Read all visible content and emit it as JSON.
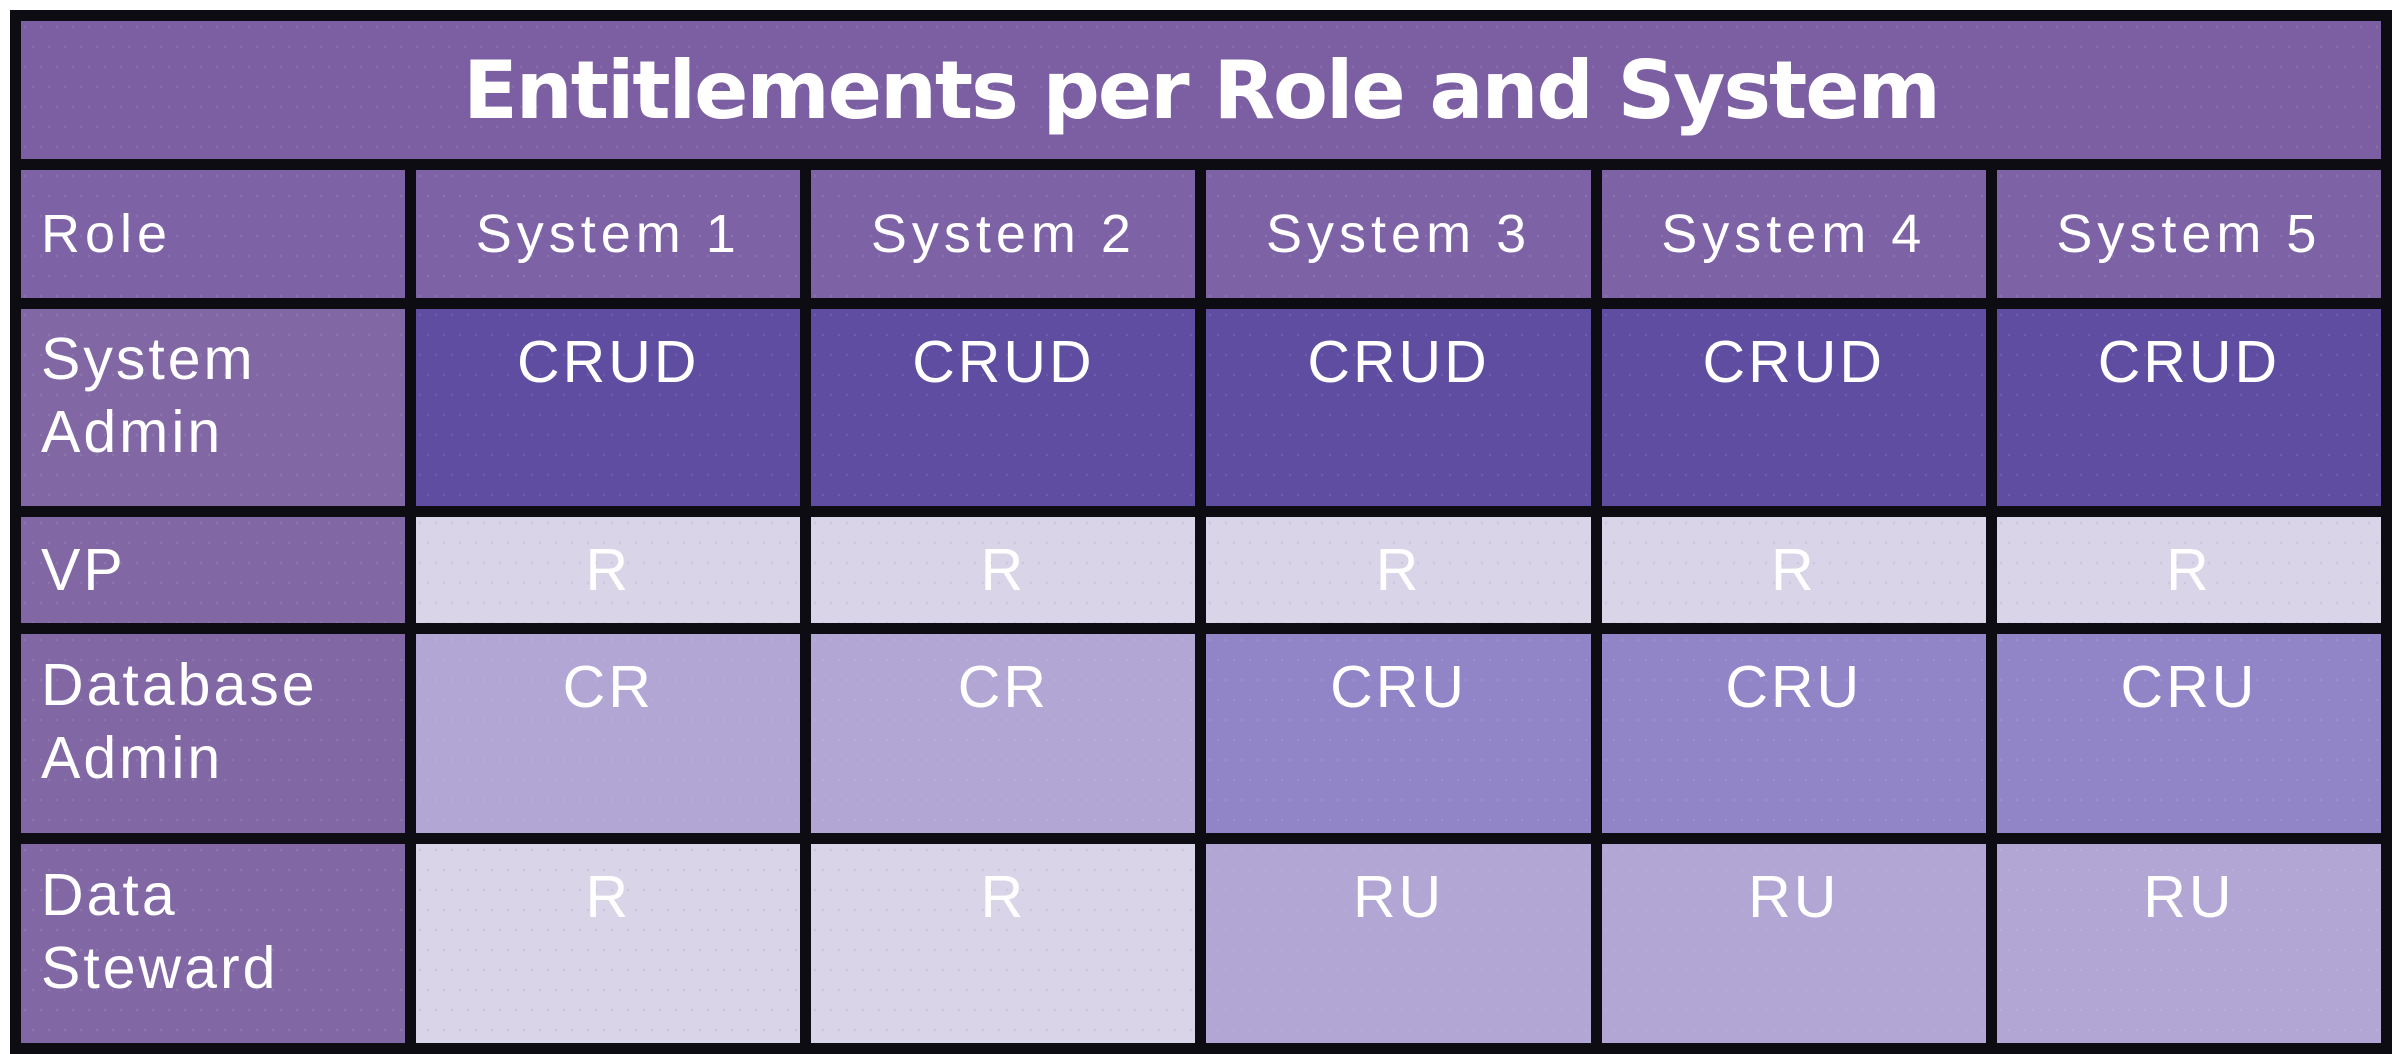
{
  "title": "Entitlements per Role and System",
  "columns": [
    "Role",
    "System 1",
    "System 2",
    "System 3",
    "System 4",
    "System 5"
  ],
  "rows": [
    {
      "role": "System Admin",
      "values": [
        "CRUD",
        "CRUD",
        "CRUD",
        "CRUD",
        "CRUD"
      ]
    },
    {
      "role": "VP",
      "values": [
        "R",
        "R",
        "R",
        "R",
        "R"
      ]
    },
    {
      "role": "Database Admin",
      "values": [
        "CR",
        "CR",
        "CRU",
        "CRU",
        "CRU"
      ]
    },
    {
      "role": "Data Steward",
      "values": [
        "R",
        "R",
        "RU",
        "RU",
        "RU"
      ]
    }
  ],
  "colors": {
    "title_bg": "#7B5FA2",
    "header_bg": "#7D63A5",
    "role_bg": "#8168A4",
    "border": "#0D0C12",
    "text": "#FFFFFF",
    "value_bg": {
      "CRUD": "#5F4DA1",
      "CRU": "#9184C7",
      "CR": "#B1A6D4",
      "RU": "#B1A6D4",
      "R": "#D9D4E8"
    }
  }
}
